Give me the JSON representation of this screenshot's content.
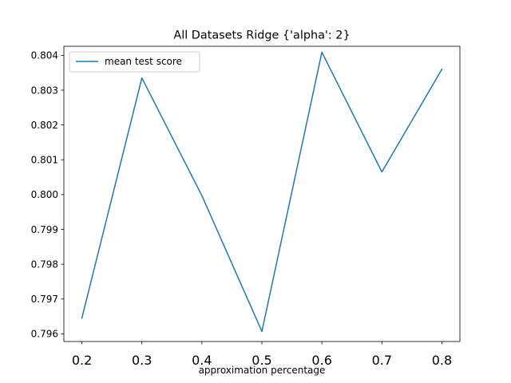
{
  "chart_data": {
    "type": "line",
    "title": "All Datasets Ridge {'alpha': 2}",
    "xlabel": "approximation percentage",
    "ylabel": "",
    "x": [
      0.2,
      0.3,
      0.4,
      0.5,
      0.6,
      0.7,
      0.8
    ],
    "xticks": [
      "0.2",
      "0.3",
      "0.4",
      "0.5",
      "0.6",
      "0.7",
      "0.8"
    ],
    "yticks": [
      "0.796",
      "0.797",
      "0.798",
      "0.799",
      "0.800",
      "0.801",
      "0.802",
      "0.803",
      "0.804"
    ],
    "ylim": [
      0.79578,
      0.80426
    ],
    "xlim": [
      0.17,
      0.83
    ],
    "grid": false,
    "legend_position": "upper left",
    "series": [
      {
        "name": "mean test score",
        "color": "#1f77b4",
        "values": [
          0.79645,
          0.80335,
          0.79997,
          0.79607,
          0.80409,
          0.80065,
          0.8036
        ]
      }
    ]
  }
}
